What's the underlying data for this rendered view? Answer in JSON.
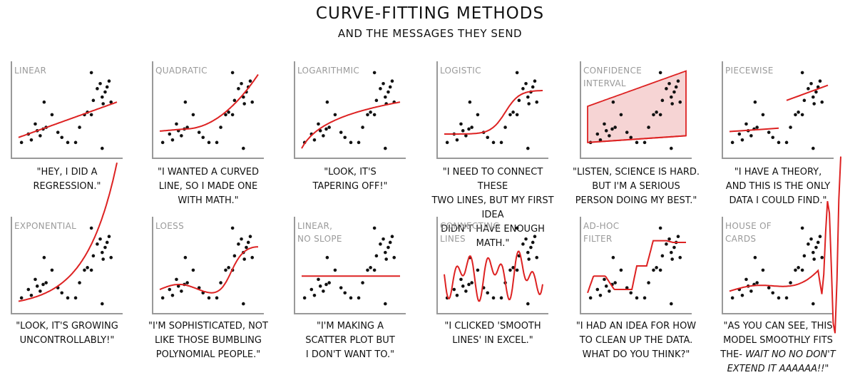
{
  "header": {
    "title": "CURVE-FITTING METHODS",
    "subtitle": "AND THE MESSAGES THEY SEND"
  },
  "panels": [
    {
      "label": "LINEAR",
      "caption": "\"HEY, I DID A\nREGRESSION.\"",
      "fit": "linear"
    },
    {
      "label": "QUADRATIC",
      "caption": "\"I WANTED A CURVED\nLINE, SO I MADE ONE\nWITH MATH.\"",
      "fit": "quadratic"
    },
    {
      "label": "LOGARITHMIC",
      "caption": "\"LOOK, IT'S\nTAPERING OFF!\"",
      "fit": "logarithmic"
    },
    {
      "label": "LOGISTIC",
      "caption": "\"I NEED TO CONNECT THESE\nTWO LINES, BUT MY FIRST IDEA\nDIDN'T HAVE ENOUGH MATH.\"",
      "fit": "logistic"
    },
    {
      "label": "CONFIDENCE\nINTERVAL",
      "caption": "\"LISTEN, SCIENCE IS HARD.\nBUT I'M A SERIOUS\nPERSON DOING MY BEST.\"",
      "fit": "confidence"
    },
    {
      "label": "PIECEWISE",
      "caption": "\"I HAVE A THEORY,\nAND THIS IS THE ONLY\nDATA I COULD FIND.\"",
      "fit": "piecewise"
    },
    {
      "label": "EXPONENTIAL",
      "caption": "\"LOOK, IT'S GROWING\nUNCONTROLLABLY!\"",
      "fit": "exponential"
    },
    {
      "label": "LOESS",
      "caption": "\"I'M SOPHISTICATED, NOT\nLIKE THOSE BUMBLING\nPOLYNOMIAL PEOPLE.\"",
      "fit": "loess"
    },
    {
      "label": "LINEAR,\nNO SLOPE",
      "caption": "\"I'M MAKING A\nSCATTER PLOT BUT\nI DON'T WANT TO.\"",
      "fit": "flat"
    },
    {
      "label": "CONNECTING\nLINES",
      "caption": "\"I CLICKED 'SMOOTH\nLINES' IN EXCEL.\"",
      "fit": "connecting"
    },
    {
      "label": "AD-HOC\nFILTER",
      "caption": "\"I HAD AN IDEA FOR HOW\nTO CLEAN UP THE DATA.\nWHAT DO YOU THINK?\"",
      "fit": "adhoc"
    },
    {
      "label": "HOUSE OF\nCARDS",
      "caption": "\"AS YOU CAN SEE, THIS\nMODEL SMOOTHLY FITS\nTHE-",
      "caption_italic": "WAIT NO NO DON'T\nEXTEND IT AAAAAA!!\"",
      "fit": "house"
    }
  ],
  "colors": {
    "fit": "#dd2222",
    "band": "#f6d4d4",
    "axis": "#999999",
    "point": "#111111"
  }
}
